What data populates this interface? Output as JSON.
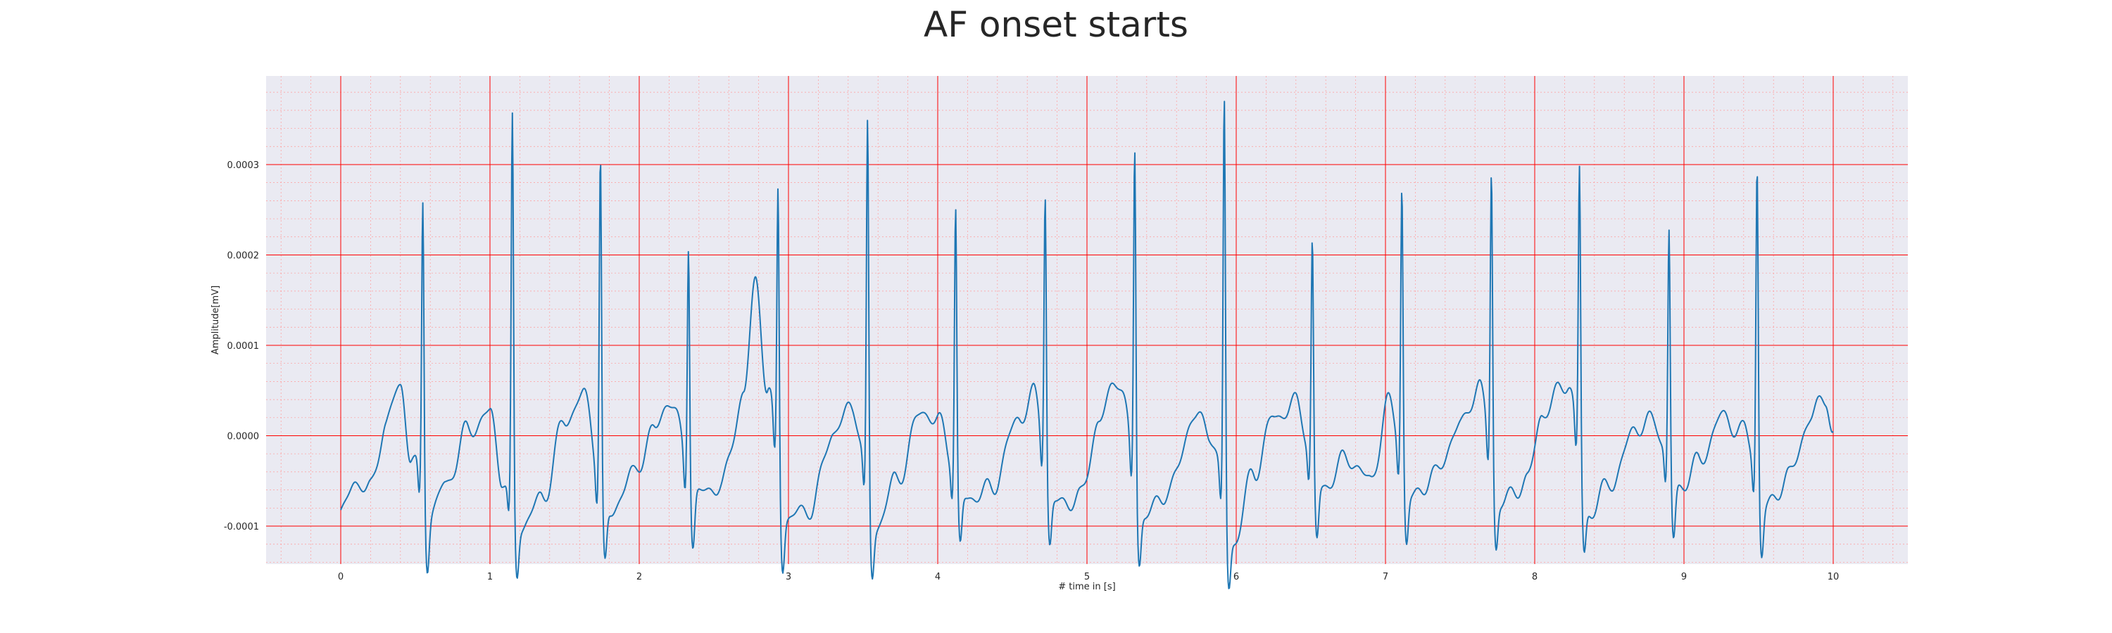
{
  "chart_data": {
    "type": "line",
    "title": "AF onset starts",
    "xlabel": "# time in [s]",
    "ylabel": "Amplitude[mV]",
    "xlim": [
      -0.5,
      10.5
    ],
    "ylim": [
      -0.000142,
      0.000398
    ],
    "x_ticks": [
      0,
      1,
      2,
      3,
      4,
      5,
      6,
      7,
      8,
      9,
      10
    ],
    "x_tick_labels": [
      "0",
      "1",
      "2",
      "3",
      "4",
      "5",
      "6",
      "7",
      "8",
      "9",
      "10"
    ],
    "y_ticks": [
      -0.0001,
      0.0,
      0.0001,
      0.0002,
      0.0003
    ],
    "y_tick_labels": [
      "-0.0001",
      "0.0000",
      "0.0001",
      "0.0002",
      "0.0003"
    ],
    "grid": true,
    "colors": {
      "background": "#eaeaf2",
      "major_grid": "#ff0000",
      "minor_grid": "#ff9999",
      "series": "#1f77b4",
      "text": "#262626"
    },
    "series": [
      {
        "beats": [
          {
            "r_time": 0.55,
            "r_amp": 0.00026
          },
          {
            "r_time": 1.15,
            "r_amp": 0.000348
          },
          {
            "r_time": 1.74,
            "r_amp": 0.000312
          },
          {
            "r_time": 2.33,
            "r_amp": 0.000219
          },
          {
            "r_time": 2.93,
            "r_amp": 0.000277
          },
          {
            "r_time": 3.53,
            "r_amp": 0.000343
          },
          {
            "r_time": 4.12,
            "r_amp": 0.000253
          },
          {
            "r_time": 4.72,
            "r_amp": 0.000275
          },
          {
            "r_time": 5.32,
            "r_amp": 0.000325
          },
          {
            "r_time": 5.92,
            "r_amp": 0.000373
          },
          {
            "r_time": 6.51,
            "r_amp": 0.000216
          },
          {
            "r_time": 7.11,
            "r_amp": 0.00028
          },
          {
            "r_time": 7.71,
            "r_amp": 0.000297
          },
          {
            "r_time": 8.3,
            "r_amp": 0.000298
          },
          {
            "r_time": 8.9,
            "r_amp": 0.000228
          },
          {
            "r_time": 9.49,
            "r_amp": 0.000303
          }
        ],
        "baseline": [
          {
            "t": 0.0,
            "v": -8.7e-05
          },
          {
            "t": 0.1,
            "v": -5e-05
          },
          {
            "t": 0.2,
            "v": -6e-05
          },
          {
            "t": 0.3,
            "v": 1.5e-05
          },
          {
            "t": 0.4,
            "v": 5.5e-05
          },
          {
            "t": 0.47,
            "v": -2.2e-05
          },
          {
            "t": 0.6,
            "v": -8.5e-05
          },
          {
            "t": 0.7,
            "v": -5.5e-05
          },
          {
            "t": 0.85,
            "v": 5e-06
          },
          {
            "t": 1.0,
            "v": 2.5e-05
          },
          {
            "t": 1.08,
            "v": -4.5e-05
          },
          {
            "t": 1.2,
            "v": -0.0001
          },
          {
            "t": 1.35,
            "v": -7e-05
          },
          {
            "t": 1.5,
            "v": 1.5e-05
          },
          {
            "t": 1.62,
            "v": 4.5e-05
          },
          {
            "t": 1.79,
            "v": -9e-05
          },
          {
            "t": 1.95,
            "v": -4.5e-05
          },
          {
            "t": 2.1,
            "v": 5e-06
          },
          {
            "t": 2.2,
            "v": 4e-05
          },
          {
            "t": 2.38,
            "v": -6.5e-05
          },
          {
            "t": 2.55,
            "v": -5.5e-05
          },
          {
            "t": 2.7,
            "v": 4.5e-05
          },
          {
            "t": 2.78,
            "v": 0.000172
          },
          {
            "t": 2.86,
            "v": 5e-05
          },
          {
            "t": 2.98,
            "v": -9.2e-05
          },
          {
            "t": 3.15,
            "v": -8e-05
          },
          {
            "t": 3.3,
            "v": 5e-06
          },
          {
            "t": 3.43,
            "v": 3.2e-05
          },
          {
            "t": 3.58,
            "v": -0.000102
          },
          {
            "t": 3.72,
            "v": -5e-05
          },
          {
            "t": 3.9,
            "v": 2.8e-05
          },
          {
            "t": 4.0,
            "v": 1.5e-05
          },
          {
            "t": 4.18,
            "v": -7e-05
          },
          {
            "t": 4.35,
            "v": -6e-05
          },
          {
            "t": 4.55,
            "v": 2e-05
          },
          {
            "t": 4.64,
            "v": 4.5e-05
          },
          {
            "t": 4.78,
            "v": -7.5e-05
          },
          {
            "t": 4.95,
            "v": -7e-05
          },
          {
            "t": 5.08,
            "v": 1.5e-05
          },
          {
            "t": 5.2,
            "v": 6.5e-05
          },
          {
            "t": 5.38,
            "v": -9e-05
          },
          {
            "t": 5.55,
            "v": -6e-05
          },
          {
            "t": 5.72,
            "v": 2.2e-05
          },
          {
            "t": 5.82,
            "v": 5e-06
          },
          {
            "t": 5.98,
            "v": -0.000118
          },
          {
            "t": 6.12,
            "v": -4e-05
          },
          {
            "t": 6.25,
            "v": 2e-05
          },
          {
            "t": 6.4,
            "v": 3.5e-05
          },
          {
            "t": 6.56,
            "v": -6e-05
          },
          {
            "t": 6.75,
            "v": -2.5e-05
          },
          {
            "t": 6.9,
            "v": -5e-05
          },
          {
            "t": 7.02,
            "v": 3.5e-05
          },
          {
            "t": 7.17,
            "v": -7e-05
          },
          {
            "t": 7.32,
            "v": -4.5e-05
          },
          {
            "t": 7.5,
            "v": 1e-05
          },
          {
            "t": 7.62,
            "v": 5.5e-05
          },
          {
            "t": 7.77,
            "v": -7.5e-05
          },
          {
            "t": 7.95,
            "v": -5e-05
          },
          {
            "t": 8.05,
            "v": 2.5e-05
          },
          {
            "t": 8.22,
            "v": 6e-05
          },
          {
            "t": 8.36,
            "v": -8.5e-05
          },
          {
            "t": 8.52,
            "v": -5e-05
          },
          {
            "t": 8.68,
            "v": 1e-05
          },
          {
            "t": 8.8,
            "v": 1.5e-05
          },
          {
            "t": 8.95,
            "v": -6e-05
          },
          {
            "t": 9.1,
            "v": -3e-05
          },
          {
            "t": 9.25,
            "v": 2e-05
          },
          {
            "t": 9.4,
            "v": 5e-06
          },
          {
            "t": 9.55,
            "v": -8e-05
          },
          {
            "t": 9.7,
            "v": -4.5e-05
          },
          {
            "t": 9.85,
            "v": 2e-05
          },
          {
            "t": 9.95,
            "v": 4.5e-05
          },
          {
            "t": 10.0,
            "v": 0.0
          }
        ]
      }
    ]
  }
}
